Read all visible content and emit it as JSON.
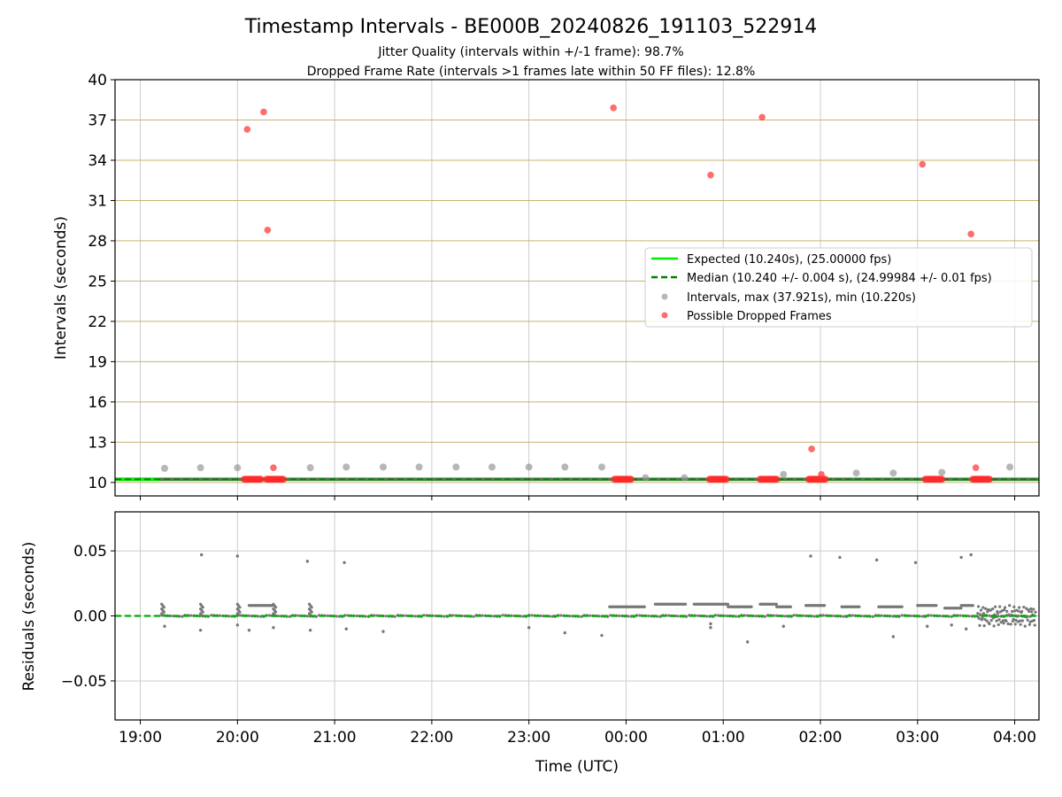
{
  "figure": {
    "title": "Timestamp Intervals - BE000B_20240826_191103_522914",
    "subtitle_1": "Jitter Quality (intervals within +/-1 frame): 98.7%",
    "subtitle_2": "Dropped Frame Rate (intervals >1 frames late within 50 FF files): 12.8%"
  },
  "chart_data": [
    {
      "type": "scatter",
      "name_panel": "intervals",
      "ylabel": "Intervals (seconds)",
      "ylim": [
        9,
        40
      ],
      "yticks": [
        10,
        13,
        16,
        19,
        22,
        25,
        28,
        31,
        34,
        37,
        40
      ],
      "ytick_labels": [
        "10",
        "13",
        "16",
        "19",
        "22",
        "25",
        "28",
        "31",
        "34",
        "37",
        "40"
      ],
      "xlim_hours": [
        18.74,
        28.25
      ],
      "grid": true,
      "horizontal_grid_color": "#c8b273",
      "legend_position": "right",
      "legend": [
        {
          "label": "Expected (10.240s), (25.00000 fps)",
          "style": "line",
          "color": "#00ee00"
        },
        {
          "label": "Median (10.240 +/- 0.004 s), (24.99984 +/- 0.01 fps)",
          "style": "dashed",
          "color": "#008000"
        },
        {
          "label": "Intervals, max (37.921s), min (10.220s)",
          "style": "dot",
          "color": "#999999"
        },
        {
          "label": "Possible Dropped Frames",
          "style": "dot",
          "color": "#ff3b3b"
        }
      ],
      "expected_value": 10.24,
      "median_value": 10.24,
      "series": [
        {
          "name": "Intervals, max (37.921s), min (10.220s)",
          "color": "#999999",
          "x_hours": [
            19.25,
            19.62,
            20.0,
            20.75,
            21.12,
            21.5,
            21.87,
            22.25,
            22.62,
            23.0,
            23.37,
            23.75,
            24.2,
            24.6,
            25.62,
            26.37,
            26.75,
            27.25,
            27.95
          ],
          "y": [
            11.05,
            11.1,
            11.1,
            11.1,
            11.15,
            11.15,
            11.15,
            11.15,
            11.15,
            11.15,
            11.15,
            11.15,
            10.35,
            10.35,
            10.6,
            10.7,
            10.7,
            10.75,
            11.15
          ]
        },
        {
          "name": "Possible Dropped Frames",
          "color": "#ff3b3b",
          "x_hours": [
            20.1,
            20.27,
            20.31,
            20.37,
            23.87,
            24.87,
            25.4,
            25.91,
            26.01,
            27.05,
            27.55,
            27.6
          ],
          "y": [
            36.3,
            37.6,
            28.8,
            11.1,
            37.9,
            32.9,
            37.2,
            12.5,
            10.6,
            33.7,
            28.5,
            11.1
          ]
        }
      ],
      "dropped_clusters": [
        {
          "x_start": 20.07,
          "x_end": 20.24
        },
        {
          "x_start": 20.3,
          "x_end": 20.47
        },
        {
          "x_start": 23.88,
          "x_end": 24.05
        },
        {
          "x_start": 24.86,
          "x_end": 25.03
        },
        {
          "x_start": 25.38,
          "x_end": 25.55
        },
        {
          "x_start": 25.88,
          "x_end": 26.05
        },
        {
          "x_start": 27.08,
          "x_end": 27.25
        },
        {
          "x_start": 27.57,
          "x_end": 27.74
        }
      ]
    },
    {
      "type": "scatter",
      "name_panel": "residuals",
      "ylabel": "Residuals (seconds)",
      "xlabel": "Time (UTC)",
      "ylim": [
        -0.08,
        0.08
      ],
      "yticks": [
        -0.05,
        0.0,
        0.05
      ],
      "ytick_labels": [
        "−0.05",
        "0.00",
        "0.05"
      ],
      "xlim_hours": [
        18.74,
        28.25
      ],
      "xticks_hours": [
        19,
        20,
        21,
        22,
        23,
        24,
        25,
        26,
        27,
        28
      ],
      "xtick_labels": [
        "19:00",
        "20:00",
        "21:00",
        "22:00",
        "23:00",
        "00:00",
        "01:00",
        "02:00",
        "03:00",
        "04:00"
      ],
      "grid": true,
      "zero_line_color": "#00aa00",
      "points_color": "#777777",
      "outliers": [
        {
          "x": 19.63,
          "y": 0.047
        },
        {
          "x": 20.0,
          "y": 0.046
        },
        {
          "x": 20.72,
          "y": 0.042
        },
        {
          "x": 21.1,
          "y": 0.041
        },
        {
          "x": 25.9,
          "y": 0.046
        },
        {
          "x": 26.2,
          "y": 0.045
        },
        {
          "x": 26.58,
          "y": 0.043
        },
        {
          "x": 26.98,
          "y": 0.041
        },
        {
          "x": 27.45,
          "y": 0.045
        },
        {
          "x": 27.55,
          "y": 0.047
        },
        {
          "x": 19.25,
          "y": -0.008
        },
        {
          "x": 19.62,
          "y": -0.011
        },
        {
          "x": 20.0,
          "y": -0.007
        },
        {
          "x": 20.12,
          "y": -0.011
        },
        {
          "x": 20.37,
          "y": -0.009
        },
        {
          "x": 20.75,
          "y": -0.011
        },
        {
          "x": 21.12,
          "y": -0.01
        },
        {
          "x": 21.5,
          "y": -0.012
        },
        {
          "x": 23.0,
          "y": -0.009
        },
        {
          "x": 23.37,
          "y": -0.013
        },
        {
          "x": 23.75,
          "y": -0.015
        },
        {
          "x": 24.87,
          "y": -0.006
        },
        {
          "x": 24.87,
          "y": -0.009
        },
        {
          "x": 25.25,
          "y": -0.02
        },
        {
          "x": 25.62,
          "y": -0.008
        },
        {
          "x": 26.75,
          "y": -0.016
        },
        {
          "x": 27.1,
          "y": -0.008
        },
        {
          "x": 27.5,
          "y": -0.01
        },
        {
          "x": 27.35,
          "y": -0.007
        }
      ],
      "plateaus": [
        {
          "x_start": 20.12,
          "x_end": 20.37,
          "y": 0.008
        },
        {
          "x_start": 23.83,
          "x_end": 24.2,
          "y": 0.007
        },
        {
          "x_start": 24.3,
          "x_end": 24.62,
          "y": 0.009
        },
        {
          "x_start": 24.7,
          "x_end": 25.05,
          "y": 0.009
        },
        {
          "x_start": 25.05,
          "x_end": 25.3,
          "y": 0.007
        },
        {
          "x_start": 25.38,
          "x_end": 25.55,
          "y": 0.009
        },
        {
          "x_start": 25.55,
          "x_end": 25.7,
          "y": 0.007
        },
        {
          "x_start": 25.85,
          "x_end": 26.05,
          "y": 0.008
        },
        {
          "x_start": 26.22,
          "x_end": 26.4,
          "y": 0.007
        },
        {
          "x_start": 26.6,
          "x_end": 26.85,
          "y": 0.007
        },
        {
          "x_start": 27.0,
          "x_end": 27.2,
          "y": 0.008
        },
        {
          "x_start": 27.28,
          "x_end": 27.45,
          "y": 0.006
        },
        {
          "x_start": 27.45,
          "x_end": 27.58,
          "y": 0.008
        }
      ]
    }
  ]
}
